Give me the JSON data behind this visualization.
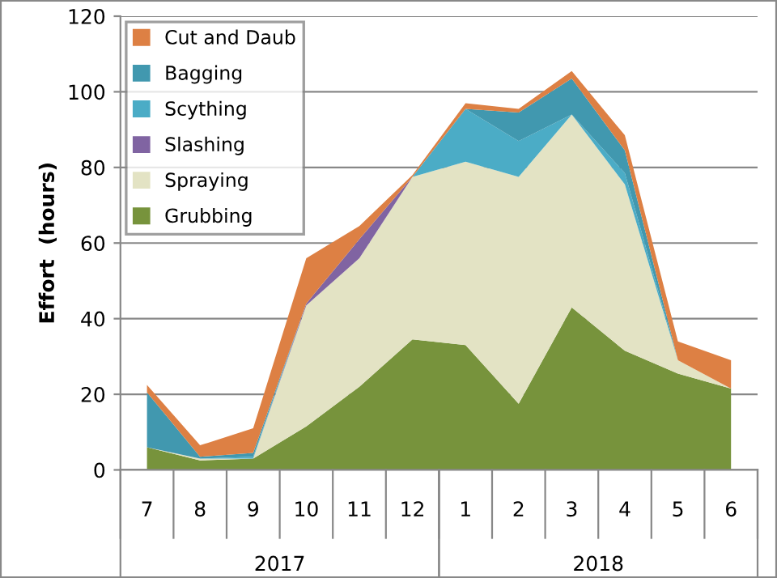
{
  "chart_data": {
    "type": "area",
    "stacked": true,
    "ylabel": "Effort  (hours)",
    "categories": [
      "7",
      "8",
      "9",
      "10",
      "11",
      "12",
      "1",
      "2",
      "3",
      "4",
      "5",
      "6"
    ],
    "annotations": [
      "2017",
      "2018"
    ],
    "series": [
      {
        "name": "Grubbing",
        "color": "#77933c",
        "values": [
          6,
          2.5,
          3,
          11.5,
          22,
          34.5,
          33,
          17.5,
          43,
          31.5,
          25.5,
          21.5
        ]
      },
      {
        "name": "Spraying",
        "color": "#e3e3c4",
        "values": [
          0,
          0.5,
          0,
          32,
          34,
          43,
          48.5,
          60,
          51,
          44,
          3.5,
          0
        ]
      },
      {
        "name": "Slashing",
        "color": "#8064a2",
        "values": [
          0,
          0,
          0,
          0.5,
          5,
          0,
          0,
          0,
          0,
          0,
          0,
          0
        ]
      },
      {
        "name": "Scything",
        "color": "#4bacc6",
        "values": [
          0,
          0,
          0.5,
          0,
          0,
          0,
          14,
          9.5,
          0,
          3,
          0,
          0
        ]
      },
      {
        "name": "Bagging",
        "color": "#4198af",
        "values": [
          14.5,
          0.5,
          1,
          0,
          0,
          0,
          0,
          7.5,
          9.5,
          6,
          0,
          0
        ]
      },
      {
        "name": "Cut and Daub",
        "color": "#dd8044",
        "values": [
          2,
          3,
          6.5,
          12,
          3.5,
          0.5,
          1.5,
          1,
          2,
          4,
          5,
          7.5
        ]
      }
    ],
    "ylim": [
      0,
      120
    ],
    "yticks": [
      0,
      20,
      40,
      60,
      80,
      100,
      120
    ],
    "grid": "y",
    "legend": "top left"
  }
}
